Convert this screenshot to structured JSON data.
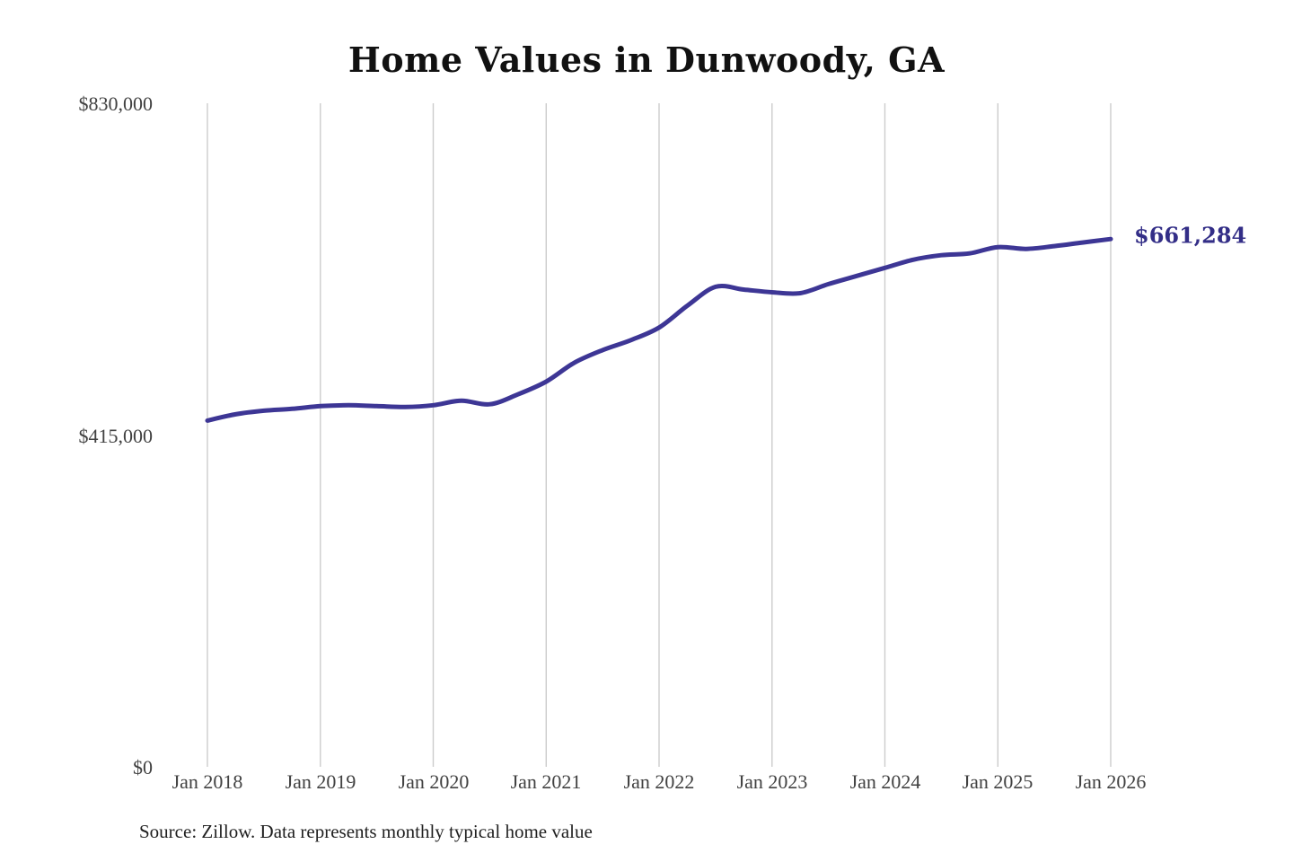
{
  "chart_data": {
    "type": "line",
    "title": "Home Values in Dunwoody, GA",
    "source_note": "Source: Zillow. Data represents monthly typical home value",
    "series_name": "Typical home value (USD)",
    "line_color": "#3d3695",
    "end_label_color": "#332e87",
    "gridline_color": "#cccccc",
    "axis_text_color": "#414141",
    "grid": "vertical-only",
    "legend": "none",
    "ylim": [
      0,
      830000
    ],
    "yticks": [
      {
        "label": "$0",
        "value": 0
      },
      {
        "label": "$415,000",
        "value": 415000
      },
      {
        "label": "$830,000",
        "value": 830000
      }
    ],
    "xticks": [
      {
        "label": "Jan 2018",
        "t": 2018
      },
      {
        "label": "Jan 2019",
        "t": 2019
      },
      {
        "label": "Jan 2020",
        "t": 2020
      },
      {
        "label": "Jan 2021",
        "t": 2021
      },
      {
        "label": "Jan 2022",
        "t": 2022
      },
      {
        "label": "Jan 2023",
        "t": 2023
      },
      {
        "label": "Jan 2024",
        "t": 2024
      },
      {
        "label": "Jan 2025",
        "t": 2025
      },
      {
        "label": "Jan 2026",
        "t": 2026
      }
    ],
    "x": [
      2018.0,
      2018.25,
      2018.5,
      2018.75,
      2019.0,
      2019.25,
      2019.5,
      2019.75,
      2020.0,
      2020.25,
      2020.5,
      2020.75,
      2021.0,
      2021.25,
      2021.5,
      2021.75,
      2022.0,
      2022.25,
      2022.5,
      2022.75,
      2023.0,
      2023.25,
      2023.5,
      2023.75,
      2024.0,
      2024.25,
      2024.5,
      2024.75,
      2025.0,
      2025.25,
      2025.5,
      2025.75,
      2026.0
    ],
    "values": [
      434200,
      442100,
      446600,
      448900,
      452300,
      453400,
      452300,
      451200,
      453400,
      459100,
      454600,
      467000,
      483000,
      506600,
      522400,
      534800,
      550600,
      577800,
      601500,
      598100,
      594700,
      593600,
      604900,
      615100,
      625200,
      635400,
      641100,
      643300,
      651200,
      649000,
      652400,
      656900,
      661284
    ],
    "end_label": "$661,284",
    "end_value": 661284
  }
}
